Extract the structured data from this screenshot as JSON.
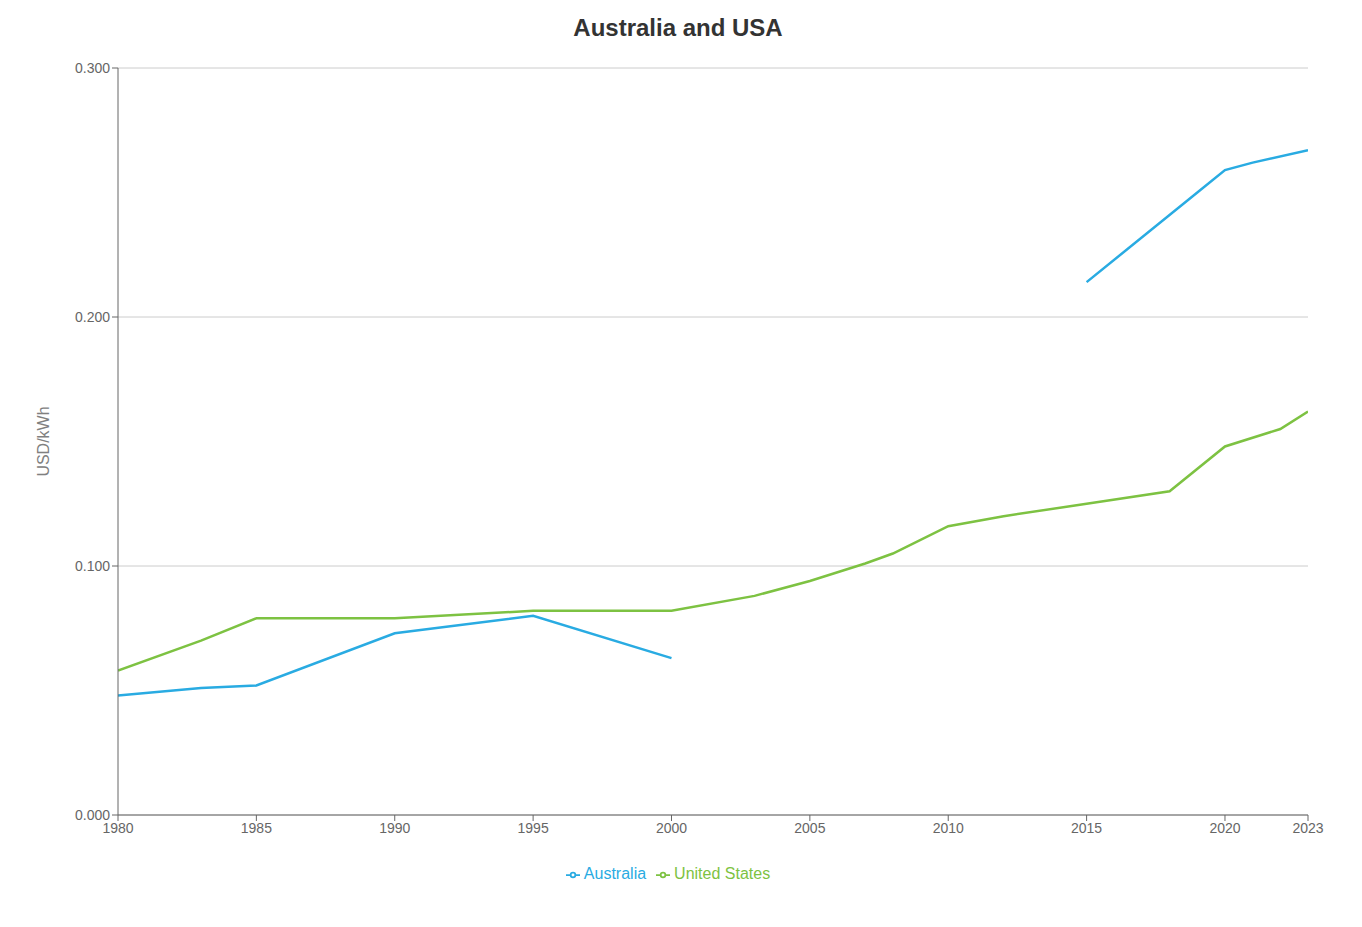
{
  "chart_data": {
    "type": "line",
    "title": "Australia and USA",
    "ylabel": "USD/kWh",
    "series": [
      {
        "name": "Australia",
        "color": "#29abe2",
        "x": [
          1980,
          1983,
          1985,
          1990,
          1995,
          2000,
          2005,
          2015,
          2019,
          2020,
          2021,
          2023
        ],
        "values": [
          0.048,
          0.051,
          0.052,
          0.073,
          0.08,
          0.063,
          null,
          0.214,
          0.25,
          0.259,
          0.262,
          0.267
        ]
      },
      {
        "name": "United States",
        "color": "#7dc242",
        "x": [
          1980,
          1983,
          1985,
          1990,
          1995,
          2000,
          2003,
          2005,
          2007,
          2008,
          2010,
          2012,
          2015,
          2018,
          2020,
          2022,
          2023
        ],
        "values": [
          0.058,
          0.07,
          0.079,
          0.079,
          0.082,
          0.082,
          0.088,
          0.094,
          0.101,
          0.105,
          0.116,
          0.12,
          0.125,
          0.13,
          0.148,
          0.155,
          0.162
        ]
      }
    ],
    "xlim": [
      1980,
      2023
    ],
    "ylim": [
      0.0,
      0.3
    ],
    "xticks": [
      1980,
      1985,
      1990,
      1995,
      2000,
      2005,
      2010,
      2015,
      2020,
      2023
    ],
    "yticks": [
      {
        "value": 0.0,
        "label": "0.000"
      },
      {
        "value": 0.1,
        "label": "0.100"
      },
      {
        "value": 0.2,
        "label": "0.200"
      },
      {
        "value": 0.3,
        "label": "0.300"
      }
    ],
    "grid": true,
    "legend": "bottom"
  }
}
